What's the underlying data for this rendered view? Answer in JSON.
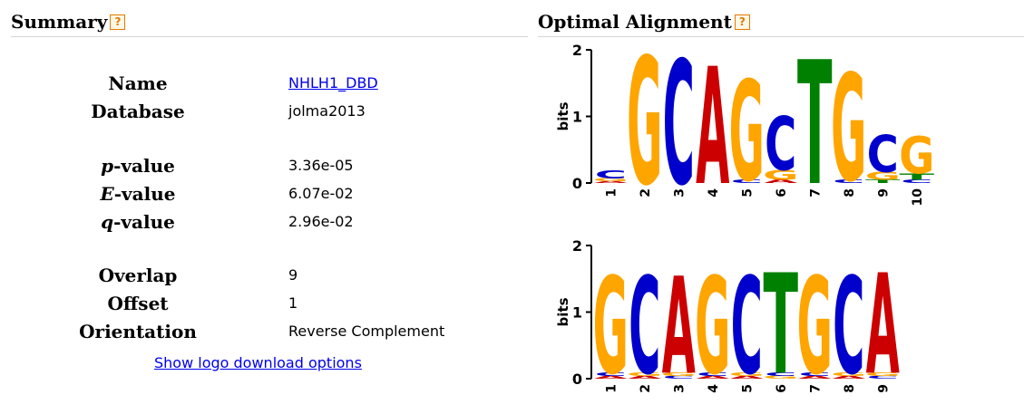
{
  "summary": {
    "title": "Summary",
    "help": "?",
    "rows": [
      {
        "label": "Name",
        "value": "NHLH1_DBD"
      },
      {
        "label": "Database",
        "value": "jolma2013"
      },
      {
        "label_italic": "p",
        "label_rest": "-value",
        "value": "3.36e-05"
      },
      {
        "label_italic": "E",
        "label_rest": "-value",
        "value": "6.07e-02"
      },
      {
        "label_italic": "q",
        "label_rest": "-value",
        "value": "2.96e-02"
      },
      {
        "label": "Overlap",
        "value": "9"
      },
      {
        "label": "Offset",
        "value": "1"
      },
      {
        "label": "Orientation",
        "value": "Reverse Complement"
      }
    ],
    "show_logo_link": "Show logo download options"
  },
  "alignment": {
    "title": "Optimal Alignment",
    "help": "?",
    "colors": {
      "A": "#cc0000",
      "C": "#0000cc",
      "G": "#ffa500",
      "T": "#008000"
    },
    "top_logo": {
      "ylabel": "bits",
      "yticks": [
        "0",
        "1",
        "2"
      ],
      "positions": [
        "1",
        "2",
        "3",
        "4",
        "5",
        "6",
        "7",
        "8",
        "9",
        "10"
      ],
      "stacks": [
        [
          [
            "C",
            0.12
          ],
          [
            "G",
            0.04
          ],
          [
            "A",
            0.03
          ]
        ],
        [
          [
            "G",
            1.9
          ]
        ],
        [
          [
            "C",
            1.85
          ]
        ],
        [
          [
            "A",
            1.75
          ]
        ],
        [
          [
            "G",
            1.5
          ],
          [
            "C",
            0.05
          ]
        ],
        [
          [
            "C",
            0.8
          ],
          [
            "G",
            0.15
          ],
          [
            "A",
            0.05
          ]
        ],
        [
          [
            "T",
            1.85
          ]
        ],
        [
          [
            "G",
            1.6
          ],
          [
            "C",
            0.05
          ]
        ],
        [
          [
            "C",
            0.55
          ],
          [
            "G",
            0.12
          ],
          [
            "T",
            0.05
          ]
        ],
        [
          [
            "G",
            0.55
          ],
          [
            "T",
            0.1
          ],
          [
            "C",
            0.05
          ]
        ]
      ]
    },
    "bottom_logo": {
      "ylabel": "bits",
      "yticks": [
        "0",
        "1",
        "2"
      ],
      "positions": [
        "1",
        "2",
        "3",
        "4",
        "5",
        "6",
        "7",
        "8",
        "9"
      ],
      "stacks": [
        [
          [
            "G",
            1.45
          ],
          [
            "C",
            0.05
          ],
          [
            "A",
            0.04
          ]
        ],
        [
          [
            "C",
            1.45
          ],
          [
            "G",
            0.05
          ],
          [
            "A",
            0.04
          ]
        ],
        [
          [
            "A",
            1.45
          ],
          [
            "G",
            0.05
          ],
          [
            "C",
            0.04
          ]
        ],
        [
          [
            "G",
            1.45
          ],
          [
            "C",
            0.05
          ],
          [
            "A",
            0.04
          ]
        ],
        [
          [
            "C",
            1.45
          ],
          [
            "G",
            0.05
          ],
          [
            "A",
            0.04
          ]
        ],
        [
          [
            "T",
            1.5
          ],
          [
            "C",
            0.05
          ],
          [
            "G",
            0.04
          ]
        ],
        [
          [
            "G",
            1.45
          ],
          [
            "C",
            0.05
          ],
          [
            "A",
            0.04
          ]
        ],
        [
          [
            "C",
            1.45
          ],
          [
            "G",
            0.05
          ],
          [
            "A",
            0.04
          ]
        ],
        [
          [
            "A",
            1.5
          ],
          [
            "G",
            0.05
          ],
          [
            "C",
            0.04
          ]
        ]
      ]
    }
  }
}
